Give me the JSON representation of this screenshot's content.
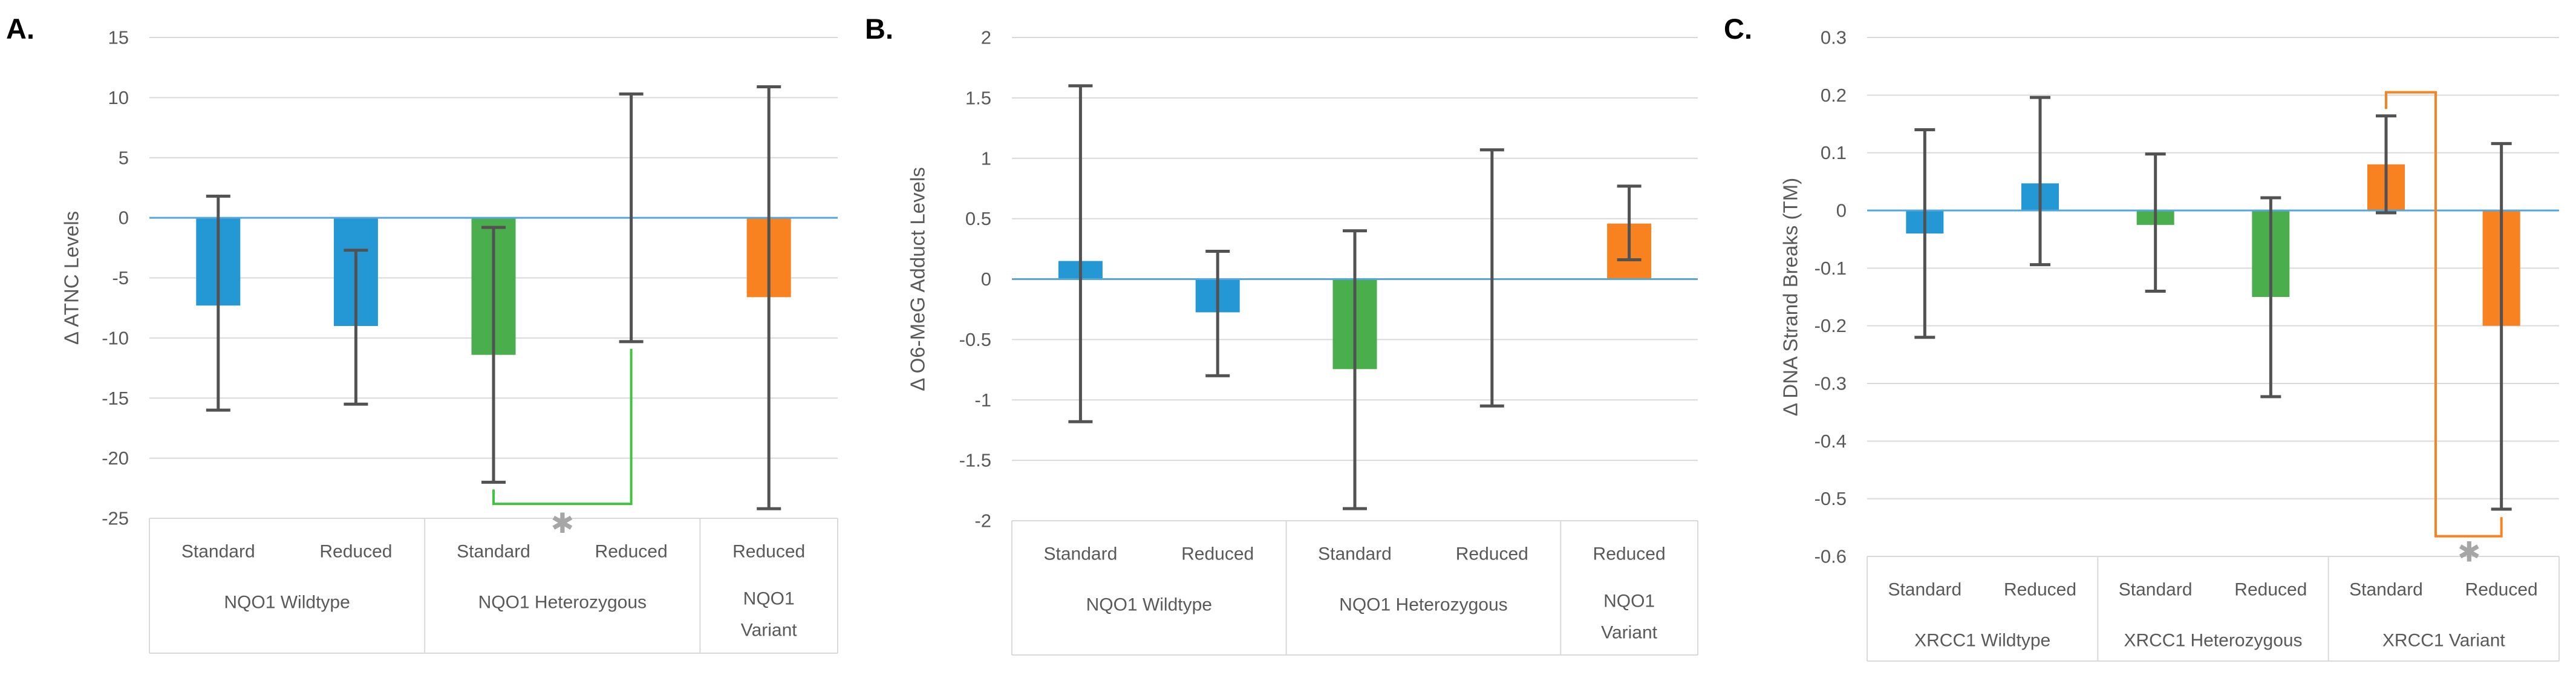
{
  "figure": {
    "background": "#FFFFFF",
    "panel_labels": [
      "A.",
      "B.",
      "C."
    ]
  },
  "colors": {
    "bar_blue": "#2398D5",
    "bar_green": "#4AAE4C",
    "bar_orange": "#F8821F",
    "zero_line": "#55A7DB",
    "gridline": "#D9D9D9",
    "error_bar": "#525252",
    "axis_text": "#595959",
    "table_border": "#D9D9D9",
    "bracket_green": "#3FC43F",
    "bracket_orange": "#F8821F",
    "asterisk_gray": "#A6A6A6"
  },
  "chart_data": [
    {
      "type": "bar",
      "panel_label": "A.",
      "ylabel": "Δ ATNC Levels",
      "ylim": [
        -25,
        15
      ],
      "ytick_step": 5,
      "grid": true,
      "legend": "none",
      "yticks": [
        {
          "v": 15,
          "label": "15"
        },
        {
          "v": 10,
          "label": "10"
        },
        {
          "v": 5,
          "label": "5"
        },
        {
          "v": 0,
          "label": "0"
        },
        {
          "v": -5,
          "label": "-5"
        },
        {
          "v": -10,
          "label": "-10"
        },
        {
          "v": -15,
          "label": "-15"
        },
        {
          "v": -20,
          "label": "-20"
        },
        {
          "v": -25,
          "label": "-25"
        }
      ],
      "groups": [
        {
          "label": "NQO1 Wildtype",
          "categories": [
            "Standard",
            "Reduced"
          ]
        },
        {
          "label": "NQO1 Heterozygous",
          "categories": [
            "Standard",
            "Reduced"
          ]
        },
        {
          "label": "NQO1 Variant",
          "label_lines": [
            "NQO1",
            "Variant"
          ],
          "categories": [
            "Reduced"
          ]
        }
      ],
      "bars": [
        {
          "group": 0,
          "category": "Standard",
          "value": -7.3,
          "err_low": -16.0,
          "err_high": 1.8,
          "color": "#2398D5"
        },
        {
          "group": 0,
          "category": "Reduced",
          "value": -9.0,
          "err_low": -15.5,
          "err_high": -2.7,
          "color": "#2398D5"
        },
        {
          "group": 1,
          "category": "Standard",
          "value": -11.4,
          "err_low": -22.0,
          "err_high": -0.8,
          "color": "#4AAE4C"
        },
        {
          "group": 1,
          "category": "Reduced",
          "value": 0,
          "err_low": -10.3,
          "err_high": 10.3,
          "color": "#4AAE4C"
        },
        {
          "group": 2,
          "category": "Reduced",
          "value": -6.6,
          "err_low": -24.2,
          "err_high": 10.9,
          "color": "#F8821F"
        }
      ],
      "significance": {
        "style": "bottom",
        "from_col": 2,
        "to_col": 3,
        "color": "#3FC43F",
        "tick_from": -22.6,
        "base_y": -23.8,
        "rise_to": -10.9,
        "symbol": "✱",
        "symbol_color": "#A6A6A6",
        "symbol_y": -25.4,
        "symbol_x_frac": 0.5
      }
    },
    {
      "type": "bar",
      "panel_label": "B.",
      "ylabel": "Δ O6-MeG Adduct Levels",
      "ylim": [
        -2,
        2
      ],
      "ytick_step": 0.5,
      "grid": true,
      "legend": "none",
      "yticks": [
        {
          "v": 2,
          "label": "2"
        },
        {
          "v": 1.5,
          "label": "1.5"
        },
        {
          "v": 1,
          "label": "1"
        },
        {
          "v": 0.5,
          "label": "0.5"
        },
        {
          "v": 0,
          "label": "0"
        },
        {
          "v": -0.5,
          "label": "-0.5"
        },
        {
          "v": -1,
          "label": "-1"
        },
        {
          "v": -1.5,
          "label": "-1.5"
        },
        {
          "v": -2,
          "label": "-2"
        }
      ],
      "groups": [
        {
          "label": "NQO1 Wildtype",
          "categories": [
            "Standard",
            "Reduced"
          ]
        },
        {
          "label": "NQO1 Heterozygous",
          "categories": [
            "Standard",
            "Reduced"
          ]
        },
        {
          "label": "NQO1 Variant",
          "label_lines": [
            "NQO1",
            "Variant"
          ],
          "categories": [
            "Reduced"
          ]
        }
      ],
      "bars": [
        {
          "group": 0,
          "category": "Standard",
          "value": 0.15,
          "err_low": -1.18,
          "err_high": 1.6,
          "color": "#2398D5"
        },
        {
          "group": 0,
          "category": "Reduced",
          "value": -0.275,
          "err_low": -0.8,
          "err_high": 0.23,
          "color": "#2398D5"
        },
        {
          "group": 1,
          "category": "Standard",
          "value": -0.745,
          "err_low": -1.9,
          "err_high": 0.4,
          "color": "#4AAE4C"
        },
        {
          "group": 1,
          "category": "Reduced",
          "value": 0,
          "err_low": -1.05,
          "err_high": 1.07,
          "color": "#4AAE4C"
        },
        {
          "group": 2,
          "category": "Reduced",
          "value": 0.46,
          "err_low": 0.16,
          "err_high": 0.77,
          "color": "#F8821F"
        }
      ],
      "significance": null
    },
    {
      "type": "bar",
      "panel_label": "C.",
      "ylabel": "Δ DNA Strand Breaks (TM)",
      "ylim": [
        -0.6,
        0.3
      ],
      "ytick_step": 0.1,
      "grid": true,
      "legend": "none",
      "yticks": [
        {
          "v": 0.3,
          "label": "0.3"
        },
        {
          "v": 0.2,
          "label": "0.2"
        },
        {
          "v": 0.1,
          "label": "0.1"
        },
        {
          "v": 0,
          "label": "0"
        },
        {
          "v": -0.1,
          "label": "-0.1"
        },
        {
          "v": -0.2,
          "label": "-0.2"
        },
        {
          "v": -0.3,
          "label": "-0.3"
        },
        {
          "v": -0.4,
          "label": "-0.4"
        },
        {
          "v": -0.5,
          "label": "-0.5"
        },
        {
          "v": -0.6,
          "label": "-0.6"
        }
      ],
      "groups": [
        {
          "label": "XRCC1 Wildtype",
          "categories": [
            "Standard",
            "Reduced"
          ]
        },
        {
          "label": "XRCC1 Heterozygous",
          "categories": [
            "Standard",
            "Reduced"
          ]
        },
        {
          "label": "XRCC1 Variant",
          "categories": [
            "Standard",
            "Reduced"
          ]
        }
      ],
      "bars": [
        {
          "group": 0,
          "category": "Standard",
          "value": -0.04,
          "err_low": -0.22,
          "err_high": 0.14,
          "color": "#2398D5"
        },
        {
          "group": 0,
          "category": "Reduced",
          "value": 0.047,
          "err_low": -0.094,
          "err_high": 0.196,
          "color": "#2398D5"
        },
        {
          "group": 1,
          "category": "Standard",
          "value": -0.025,
          "err_low": -0.14,
          "err_high": 0.098,
          "color": "#4AAE4C"
        },
        {
          "group": 1,
          "category": "Reduced",
          "value": -0.15,
          "err_low": -0.323,
          "err_high": 0.022,
          "color": "#4AAE4C"
        },
        {
          "group": 2,
          "category": "Standard",
          "value": 0.08,
          "err_low": -0.004,
          "err_high": 0.164,
          "color": "#F8821F"
        },
        {
          "group": 2,
          "category": "Reduced",
          "value": -0.2,
          "err_low": -0.518,
          "err_high": 0.116,
          "color": "#F8821F"
        }
      ],
      "significance": {
        "style": "span",
        "from_col": 4,
        "to_col": 5,
        "color": "#F8821F",
        "top_y": 0.205,
        "from_tick_to": 0.176,
        "mid_x_frac": 0.43,
        "bottom_y": -0.565,
        "to_tick_to": -0.532,
        "symbol": "✱",
        "symbol_color": "#A6A6A6",
        "symbol_y": -0.592,
        "symbol_x_frac": 0.72
      }
    }
  ]
}
